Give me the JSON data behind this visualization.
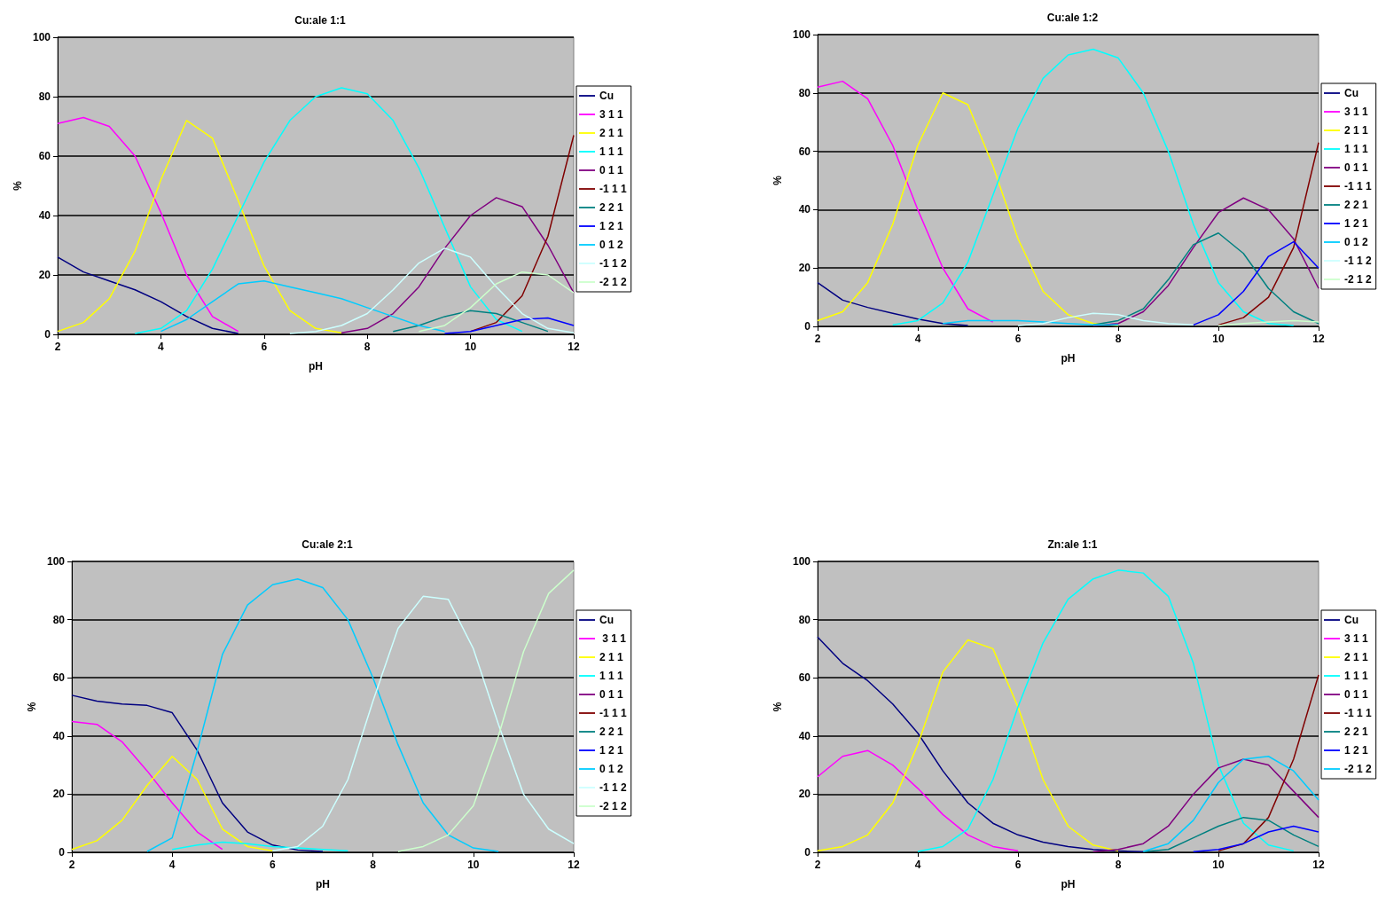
{
  "chart_data": [
    {
      "type": "line",
      "title": "Cu:ale 1:1",
      "xlabel": "pH",
      "ylabel": "%",
      "xlim": [
        2,
        12
      ],
      "xticks": [
        2,
        4,
        6,
        8,
        10,
        12
      ],
      "ylim": [
        0,
        100
      ],
      "yticks": [
        0,
        20,
        40,
        60,
        80,
        100
      ],
      "grid": "y",
      "legend": "right",
      "x": [
        2,
        2.5,
        3,
        3.5,
        4,
        4.5,
        5,
        5.5,
        6,
        6.5,
        7,
        7.5,
        8,
        8.5,
        9,
        9.5,
        10,
        10.5,
        11,
        11.5,
        12
      ],
      "series": [
        {
          "name": "Cu",
          "color": "#000080",
          "values": [
            26,
            21,
            18,
            15,
            11,
            6,
            2,
            0.3,
            null,
            null,
            null,
            null,
            null,
            null,
            null,
            null,
            null,
            null,
            null,
            null,
            null
          ]
        },
        {
          "name": "3 1 1",
          "color": "#ff00ff",
          "values": [
            71,
            73,
            70,
            60,
            41,
            20,
            6,
            1,
            null,
            null,
            null,
            null,
            null,
            null,
            null,
            null,
            null,
            null,
            null,
            null,
            null
          ]
        },
        {
          "name": "2 1 1",
          "color": "#ffff00",
          "values": [
            1,
            4,
            12,
            28,
            52,
            72,
            66,
            45,
            23,
            8,
            2,
            0.5,
            null,
            null,
            null,
            null,
            null,
            null,
            null,
            null,
            null
          ]
        },
        {
          "name": "1 1 1",
          "color": "#00ffff",
          "values": [
            null,
            null,
            null,
            0.3,
            2,
            8,
            22,
            40,
            58,
            72,
            80,
            83,
            81,
            72,
            56,
            36,
            16,
            5,
            1,
            null,
            null
          ]
        },
        {
          "name": "0 1 1",
          "color": "#800080",
          "values": [
            null,
            null,
            null,
            null,
            null,
            null,
            null,
            null,
            null,
            null,
            null,
            0.5,
            2,
            7,
            16,
            29,
            40,
            46,
            43,
            30,
            14
          ]
        },
        {
          "name": "-1 1 1",
          "color": "#800000",
          "values": [
            null,
            null,
            null,
            null,
            null,
            null,
            null,
            null,
            null,
            null,
            null,
            null,
            null,
            null,
            null,
            null,
            1,
            4,
            13,
            33,
            67
          ]
        },
        {
          "name": "2 2 1",
          "color": "#008080",
          "values": [
            null,
            null,
            null,
            null,
            null,
            null,
            null,
            null,
            null,
            null,
            null,
            null,
            null,
            1,
            3,
            6,
            8,
            7,
            4,
            1,
            null
          ]
        },
        {
          "name": "1 2 1",
          "color": "#0000ff",
          "values": [
            null,
            null,
            null,
            null,
            null,
            null,
            null,
            null,
            null,
            null,
            null,
            null,
            null,
            null,
            null,
            0.3,
            1,
            3,
            5,
            5.5,
            3
          ]
        },
        {
          "name": "0 1 2",
          "color": "#00ccff",
          "values": [
            null,
            null,
            null,
            null,
            1,
            5,
            11,
            17,
            18,
            16,
            14,
            12,
            9,
            6,
            3,
            1,
            null,
            null,
            null,
            null,
            null
          ]
        },
        {
          "name": "-1 1 2",
          "color": "#ccffff",
          "values": [
            null,
            null,
            null,
            null,
            null,
            null,
            null,
            null,
            null,
            0.3,
            1,
            3,
            7,
            15,
            24,
            29,
            26,
            16,
            7,
            2,
            0.5
          ]
        },
        {
          "name": "-2 1 2",
          "color": "#ccffcc",
          "values": [
            null,
            null,
            null,
            null,
            null,
            null,
            null,
            null,
            null,
            null,
            null,
            null,
            null,
            null,
            1,
            3,
            9,
            17,
            21,
            20,
            14
          ]
        }
      ]
    },
    {
      "type": "line",
      "title": "Cu:ale 1:2",
      "xlabel": "pH",
      "ylabel": "%",
      "xlim": [
        2,
        12
      ],
      "xticks": [
        2,
        4,
        6,
        8,
        10,
        12
      ],
      "ylim": [
        0,
        100
      ],
      "yticks": [
        0,
        20,
        40,
        60,
        80,
        100
      ],
      "grid": "y",
      "legend": "right",
      "x": [
        2,
        2.5,
        3,
        3.5,
        4,
        4.5,
        5,
        5.5,
        6,
        6.5,
        7,
        7.5,
        8,
        8.5,
        9,
        9.5,
        10,
        10.5,
        11,
        11.5,
        12
      ],
      "series": [
        {
          "name": "Cu",
          "color": "#000080",
          "values": [
            15,
            9,
            6.5,
            4.5,
            2.5,
            1,
            0.3,
            null,
            null,
            null,
            null,
            null,
            null,
            null,
            null,
            null,
            null,
            null,
            null,
            null,
            null
          ]
        },
        {
          "name": "3 1 1",
          "color": "#ff00ff",
          "values": [
            82,
            84,
            78,
            62,
            40,
            20,
            6,
            1.5,
            null,
            null,
            null,
            null,
            null,
            null,
            null,
            null,
            null,
            null,
            null,
            null,
            null
          ]
        },
        {
          "name": "2 1 1",
          "color": "#ffff00",
          "values": [
            2,
            5,
            15,
            35,
            62,
            80,
            76,
            55,
            30,
            12,
            4,
            1,
            0.3,
            null,
            null,
            null,
            null,
            null,
            null,
            null,
            null
          ]
        },
        {
          "name": "1 1 1",
          "color": "#00ffff",
          "values": [
            null,
            null,
            null,
            0.5,
            2,
            8,
            22,
            45,
            68,
            85,
            93,
            95,
            92,
            80,
            60,
            35,
            15,
            5,
            1,
            0.3,
            null
          ]
        },
        {
          "name": "0 1 1",
          "color": "#800080",
          "values": [
            null,
            null,
            null,
            null,
            null,
            null,
            null,
            null,
            null,
            null,
            null,
            0.2,
            1,
            5,
            14,
            27,
            39,
            44,
            40,
            30,
            13
          ]
        },
        {
          "name": "-1 1 1",
          "color": "#800000",
          "values": [
            null,
            null,
            null,
            null,
            null,
            null,
            null,
            null,
            null,
            null,
            null,
            null,
            null,
            null,
            null,
            null,
            0.5,
            3,
            10,
            27,
            63
          ]
        },
        {
          "name": "2 2 1",
          "color": "#008080",
          "values": [
            null,
            null,
            null,
            null,
            null,
            null,
            null,
            null,
            null,
            null,
            null,
            0.5,
            2,
            6,
            16,
            28,
            32,
            25,
            13,
            5,
            1
          ]
        },
        {
          "name": "1 2 1",
          "color": "#0000ff",
          "values": [
            null,
            null,
            null,
            null,
            null,
            null,
            null,
            null,
            null,
            null,
            null,
            null,
            null,
            null,
            null,
            0.5,
            4,
            12,
            24,
            29,
            20
          ]
        },
        {
          "name": "0 1 2",
          "color": "#00ccff",
          "values": [
            null,
            null,
            null,
            null,
            null,
            1,
            2,
            2,
            2,
            1.5,
            1,
            0.5,
            0.5,
            null,
            null,
            null,
            null,
            null,
            null,
            null,
            null
          ]
        },
        {
          "name": "-1 1 2",
          "color": "#ccffff",
          "values": [
            null,
            null,
            null,
            null,
            null,
            null,
            null,
            null,
            0.3,
            1,
            3,
            4.5,
            4,
            2,
            1,
            0.5,
            null,
            null,
            null,
            null,
            null
          ]
        },
        {
          "name": "-2 1 2",
          "color": "#ccffcc",
          "values": [
            null,
            null,
            null,
            null,
            null,
            null,
            null,
            null,
            null,
            null,
            null,
            null,
            null,
            null,
            null,
            null,
            0.3,
            1,
            1.5,
            2,
            1.5
          ]
        }
      ]
    },
    {
      "type": "line",
      "title": "Cu:ale 2:1",
      "xlabel": "pH",
      "ylabel": "%",
      "xlim": [
        2,
        12
      ],
      "xticks": [
        2,
        4,
        6,
        8,
        10,
        12
      ],
      "ylim": [
        0,
        100
      ],
      "yticks": [
        0,
        20,
        40,
        60,
        80,
        100
      ],
      "grid": "y",
      "legend": "right",
      "x": [
        2,
        2.5,
        3,
        3.5,
        4,
        4.5,
        5,
        5.5,
        6,
        6.5,
        7,
        7.5,
        8,
        8.5,
        9,
        9.5,
        10,
        10.5,
        11,
        11.5,
        12
      ],
      "series": [
        {
          "name": "Cu",
          "color": "#000080",
          "values": [
            54,
            52,
            51,
            50.5,
            48,
            35,
            17,
            7,
            2.5,
            0.8,
            0.3,
            null,
            null,
            null,
            null,
            null,
            null,
            null,
            null,
            null,
            null
          ]
        },
        {
          "name": " 3 1 1",
          "color": "#ff00ff",
          "values": [
            45,
            44,
            38,
            28,
            17,
            7,
            1,
            null,
            null,
            null,
            null,
            null,
            null,
            null,
            null,
            null,
            null,
            null,
            null,
            null,
            null
          ]
        },
        {
          "name": "2 1 1",
          "color": "#ffff00",
          "values": [
            1,
            4,
            11,
            23,
            33,
            25,
            8,
            2,
            0.5,
            null,
            null,
            null,
            null,
            null,
            null,
            null,
            null,
            null,
            null,
            null,
            null
          ]
        },
        {
          "name": "1 1 1",
          "color": "#00ffff",
          "values": [
            null,
            null,
            null,
            null,
            1,
            2.5,
            3.5,
            3,
            2,
            1.5,
            1,
            0.5,
            null,
            null,
            null,
            null,
            null,
            null,
            null,
            null,
            null
          ]
        },
        {
          "name": "0 1 1",
          "color": "#800080",
          "values": [
            null,
            null,
            null,
            null,
            null,
            null,
            null,
            null,
            null,
            null,
            null,
            null,
            null,
            null,
            null,
            null,
            null,
            null,
            null,
            null,
            null
          ]
        },
        {
          "name": "-1 1 1",
          "color": "#800000",
          "values": [
            null,
            null,
            null,
            null,
            null,
            null,
            null,
            null,
            null,
            null,
            null,
            null,
            null,
            null,
            null,
            null,
            null,
            null,
            null,
            null,
            null
          ]
        },
        {
          "name": "2 2 1",
          "color": "#008080",
          "values": [
            null,
            null,
            null,
            null,
            null,
            null,
            null,
            null,
            null,
            null,
            null,
            null,
            null,
            null,
            null,
            null,
            null,
            null,
            null,
            null,
            null
          ]
        },
        {
          "name": "1 2 1",
          "color": "#0000ff",
          "values": [
            null,
            null,
            null,
            null,
            null,
            null,
            null,
            null,
            null,
            null,
            null,
            null,
            null,
            null,
            null,
            null,
            null,
            null,
            null,
            null,
            null
          ]
        },
        {
          "name": "0 1 2",
          "color": "#00ccff",
          "values": [
            null,
            null,
            null,
            0.3,
            5,
            35,
            68,
            85,
            92,
            94,
            91,
            80,
            60,
            37,
            17,
            6,
            1.5,
            0.3,
            null,
            null,
            null
          ]
        },
        {
          "name": "-1 1 2",
          "color": "#ccffff",
          "values": [
            null,
            null,
            null,
            null,
            null,
            null,
            null,
            null,
            0.5,
            2,
            9,
            25,
            52,
            77,
            88,
            87,
            70,
            44,
            20,
            8,
            3
          ]
        },
        {
          "name": "-2 1 2",
          "color": "#ccffcc",
          "values": [
            null,
            null,
            null,
            null,
            null,
            null,
            null,
            null,
            null,
            null,
            null,
            null,
            null,
            0.3,
            2,
            6,
            16,
            40,
            69,
            89,
            97
          ]
        }
      ]
    },
    {
      "type": "line",
      "title": "Zn:ale 1:1",
      "xlabel": "pH",
      "ylabel": "%",
      "xlim": [
        2,
        12
      ],
      "xticks": [
        2,
        4,
        6,
        8,
        10,
        12
      ],
      "ylim": [
        0,
        100
      ],
      "yticks": [
        0,
        20,
        40,
        60,
        80,
        100
      ],
      "grid": "y",
      "legend": "right",
      "x": [
        2,
        2.5,
        3,
        3.5,
        4,
        4.5,
        5,
        5.5,
        6,
        6.5,
        7,
        7.5,
        8,
        8.5,
        9,
        9.5,
        10,
        10.5,
        11,
        11.5,
        12
      ],
      "series": [
        {
          "name": "Cu",
          "color": "#000080",
          "values": [
            74,
            65,
            59,
            51,
            41,
            28,
            17,
            10,
            6,
            3.5,
            2,
            1,
            0.5,
            0.2,
            null,
            null,
            null,
            null,
            null,
            null,
            null
          ]
        },
        {
          "name": "3 1 1",
          "color": "#ff00ff",
          "values": [
            26,
            33,
            35,
            30,
            22,
            13,
            6,
            2,
            0.5,
            null,
            null,
            null,
            null,
            null,
            null,
            null,
            null,
            null,
            null,
            null,
            null
          ]
        },
        {
          "name": "2 1 1",
          "color": "#ffff00",
          "values": [
            0.5,
            2,
            6,
            17,
            37,
            62,
            73,
            70,
            50,
            25,
            9,
            2.5,
            0.5,
            null,
            null,
            null,
            null,
            null,
            null,
            null,
            null
          ]
        },
        {
          "name": "1 1 1",
          "color": "#00ffff",
          "values": [
            null,
            null,
            null,
            null,
            0.3,
            2,
            8,
            25,
            50,
            72,
            87,
            94,
            97,
            96,
            88,
            65,
            30,
            10,
            2.5,
            0.5,
            null
          ]
        },
        {
          "name": "0 1 1",
          "color": "#800080",
          "values": [
            null,
            null,
            null,
            null,
            null,
            null,
            null,
            null,
            null,
            null,
            null,
            0.2,
            1,
            3,
            9,
            20,
            29,
            32,
            30,
            21,
            12
          ]
        },
        {
          "name": "-1 1 1",
          "color": "#800000",
          "values": [
            null,
            null,
            null,
            null,
            null,
            null,
            null,
            null,
            null,
            null,
            null,
            null,
            null,
            null,
            null,
            null,
            0.5,
            3,
            12,
            32,
            61
          ]
        },
        {
          "name": "2 2 1",
          "color": "#008080",
          "values": [
            null,
            null,
            null,
            null,
            null,
            null,
            null,
            null,
            null,
            null,
            null,
            null,
            null,
            0.2,
            1,
            5,
            9,
            12,
            11,
            6,
            2
          ]
        },
        {
          "name": "1 2 1",
          "color": "#0000ff",
          "values": [
            null,
            null,
            null,
            null,
            null,
            null,
            null,
            null,
            null,
            null,
            null,
            null,
            null,
            null,
            null,
            0.2,
            1,
            3,
            7,
            9,
            7
          ]
        },
        {
          "name": "-2 1 2",
          "color": "#00ccff",
          "values": [
            null,
            null,
            null,
            null,
            null,
            null,
            null,
            null,
            null,
            null,
            null,
            null,
            null,
            0.3,
            3,
            11,
            24,
            32,
            33,
            28,
            18
          ]
        }
      ]
    }
  ]
}
